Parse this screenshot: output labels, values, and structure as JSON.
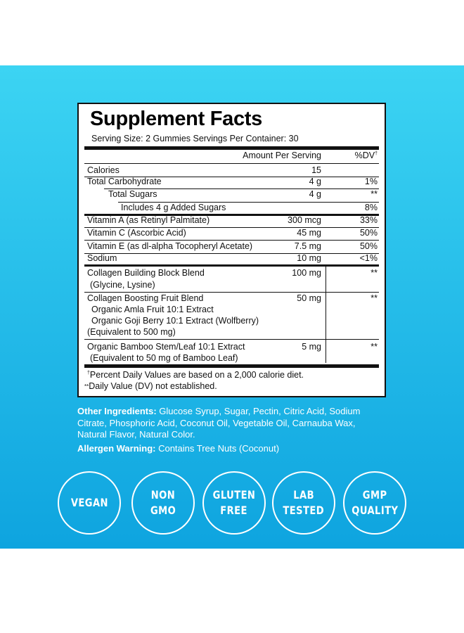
{
  "facts": {
    "title": "Supplement Facts",
    "serving": "Serving Size: 2 Gummies   Servings Per Container: 30",
    "header_amount": "Amount Per Serving",
    "header_dv": "%DV",
    "rows": [
      {
        "name": "Calories",
        "amount": "15",
        "dv": ""
      },
      {
        "name": "Total Carbohydrate",
        "amount": "4 g",
        "dv": "1%"
      },
      {
        "name": "Total Sugars",
        "amount": "4 g",
        "dv": "**"
      },
      {
        "name": "Includes 4 g Added Sugars",
        "amount": "",
        "dv": "8%"
      },
      {
        "name": "Vitamin A (as Retinyl Palmitate)",
        "amount": "300 mcg",
        "dv": "33%"
      },
      {
        "name": "Vitamin C (Ascorbic Acid)",
        "amount": "45 mg",
        "dv": "50%"
      },
      {
        "name": "Vitamin E (as dl-alpha Tocopheryl Acetate)",
        "amount": "7.5 mg",
        "dv": "50%"
      },
      {
        "name": "Sodium",
        "amount": "10 mg",
        "dv": "<1%"
      }
    ],
    "blends": [
      {
        "lines": [
          "Collagen Building Block Blend",
          "(Glycine, Lysine)"
        ],
        "amount": "100 mg",
        "dv": "**"
      },
      {
        "lines": [
          "Collagen Boosting Fruit Blend",
          "Organic Amla Fruit 10:1 Extract",
          "Organic Goji Berry 10:1 Extract (Wolfberry)",
          "(Equivalent to 500 mg)"
        ],
        "amount": "50 mg",
        "dv": "**"
      },
      {
        "lines": [
          "Organic Bamboo Stem/Leaf 10:1 Extract",
          "(Equivalent to 50 mg of Bamboo Leaf)"
        ],
        "amount": "5 mg",
        "dv": "**"
      }
    ],
    "footnote1": "Percent Daily Values are based on a 2,000 calorie diet.",
    "footnote2": "Daily Value (DV) not established."
  },
  "ingredients": {
    "other_label": "Other Ingredients:",
    "other_text": " Glucose Syrup, Sugar, Pectin, Citric Acid, Sodium",
    "other_line2": "Citrate, Phosphoric Acid, Coconut Oil, Vegetable Oil, Carnauba Wax,",
    "other_line3": "Natural Flavor, Natural Color.",
    "allergen_label": "Allergen Warning:",
    "allergen_text": " Contains Tree Nuts (Coconut)"
  },
  "badges": [
    [
      "VEGAN"
    ],
    [
      "NON",
      "GMO"
    ],
    [
      "GLUTEN",
      "FREE"
    ],
    [
      "LAB",
      "TESTED"
    ],
    [
      "GMP",
      "QUALITY"
    ]
  ],
  "colors": {
    "band_top": "#3cd4f3",
    "band_bottom": "#0ea4df"
  }
}
